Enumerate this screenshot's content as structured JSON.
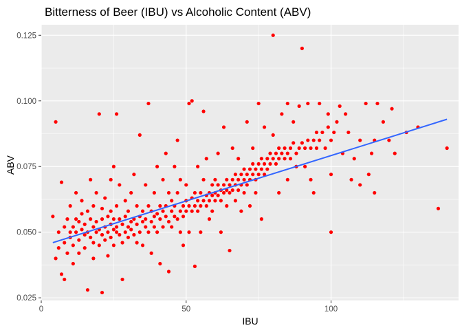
{
  "chart_data": {
    "type": "scatter",
    "title": "Bitterness of Beer (IBU) vs Alcoholic Content (ABV)",
    "xlabel": "IBU",
    "ylabel": "ABV",
    "xlim": [
      0,
      144
    ],
    "ylim": [
      0.024,
      0.129
    ],
    "x_ticks": [
      0,
      50,
      100
    ],
    "x_tick_labels": [
      "0",
      "50",
      "100"
    ],
    "y_ticks": [
      0.025,
      0.05,
      0.075,
      0.1,
      0.125
    ],
    "y_tick_labels": [
      "0.025",
      "0.050",
      "0.075",
      "0.100",
      "0.125"
    ],
    "grid": true,
    "panel_background": "#ebebeb",
    "point_color": "#ff0000",
    "trend_color": "#3366ff",
    "trend_line": {
      "type": "lm",
      "x": [
        4,
        140
      ],
      "y": [
        0.046,
        0.093
      ]
    },
    "series": [
      {
        "points": [
          [
            4,
            0.056
          ],
          [
            5,
            0.092
          ],
          [
            5,
            0.04
          ],
          [
            6,
            0.05
          ],
          [
            6,
            0.044
          ],
          [
            7,
            0.069
          ],
          [
            7,
            0.034
          ],
          [
            8,
            0.052
          ],
          [
            8,
            0.046
          ],
          [
            8,
            0.032
          ],
          [
            9,
            0.055
          ],
          [
            9,
            0.042
          ],
          [
            10,
            0.05
          ],
          [
            10,
            0.048
          ],
          [
            10,
            0.06
          ],
          [
            11,
            0.052
          ],
          [
            11,
            0.045
          ],
          [
            11,
            0.038
          ],
          [
            12,
            0.055
          ],
          [
            12,
            0.05
          ],
          [
            12,
            0.065
          ],
          [
            13,
            0.047
          ],
          [
            13,
            0.054
          ],
          [
            13,
            0.042
          ],
          [
            14,
            0.051
          ],
          [
            14,
            0.057
          ],
          [
            14,
            0.062
          ],
          [
            15,
            0.049
          ],
          [
            15,
            0.053
          ],
          [
            15,
            0.044
          ],
          [
            16,
            0.058
          ],
          [
            16,
            0.05
          ],
          [
            16,
            0.028
          ],
          [
            17,
            0.055
          ],
          [
            17,
            0.048
          ],
          [
            17,
            0.07
          ],
          [
            18,
            0.052
          ],
          [
            18,
            0.046
          ],
          [
            18,
            0.06
          ],
          [
            18,
            0.04
          ],
          [
            19,
            0.054
          ],
          [
            19,
            0.05
          ],
          [
            19,
            0.065
          ],
          [
            20,
            0.051
          ],
          [
            20,
            0.095
          ],
          [
            20,
            0.045
          ],
          [
            21,
            0.055
          ],
          [
            21,
            0.049
          ],
          [
            21,
            0.059
          ],
          [
            21,
            0.027
          ],
          [
            22,
            0.052
          ],
          [
            22,
            0.047
          ],
          [
            22,
            0.063
          ],
          [
            23,
            0.056
          ],
          [
            23,
            0.05
          ],
          [
            23,
            0.041
          ],
          [
            24,
            0.053
          ],
          [
            24,
            0.048
          ],
          [
            24,
            0.07
          ],
          [
            24,
            0.058
          ],
          [
            25,
            0.051
          ],
          [
            25,
            0.055
          ],
          [
            25,
            0.045
          ],
          [
            25,
            0.075
          ],
          [
            26,
            0.05
          ],
          [
            26,
            0.06
          ],
          [
            26,
            0.095
          ],
          [
            26,
            0.052
          ],
          [
            27,
            0.055
          ],
          [
            27,
            0.049
          ],
          [
            27,
            0.068
          ],
          [
            28,
            0.053
          ],
          [
            28,
            0.046
          ],
          [
            28,
            0.032
          ],
          [
            29,
            0.056
          ],
          [
            29,
            0.05
          ],
          [
            29,
            0.062
          ],
          [
            30,
            0.052
          ],
          [
            30,
            0.058
          ],
          [
            30,
            0.048
          ],
          [
            31,
            0.054
          ],
          [
            31,
            0.065
          ],
          [
            31,
            0.051
          ],
          [
            32,
            0.055
          ],
          [
            32,
            0.049
          ],
          [
            32,
            0.072
          ],
          [
            33,
            0.053
          ],
          [
            33,
            0.06
          ],
          [
            33,
            0.046
          ],
          [
            34,
            0.056
          ],
          [
            34,
            0.05
          ],
          [
            34,
            0.087
          ],
          [
            35,
            0.054
          ],
          [
            35,
            0.058
          ],
          [
            35,
            0.045
          ],
          [
            36,
            0.055
          ],
          [
            36,
            0.052
          ],
          [
            36,
            0.068
          ],
          [
            37,
            0.06
          ],
          [
            37,
            0.05
          ],
          [
            37,
            0.099
          ],
          [
            38,
            0.054
          ],
          [
            38,
            0.058
          ],
          [
            38,
            0.042
          ],
          [
            39,
            0.056
          ],
          [
            39,
            0.052
          ],
          [
            39,
            0.065
          ],
          [
            40,
            0.057
          ],
          [
            40,
            0.05
          ],
          [
            40,
            0.075
          ],
          [
            41,
            0.055
          ],
          [
            41,
            0.06
          ],
          [
            41,
            0.038
          ],
          [
            42,
            0.058
          ],
          [
            42,
            0.052
          ],
          [
            42,
            0.07
          ],
          [
            43,
            0.056
          ],
          [
            43,
            0.06
          ],
          [
            43,
            0.08
          ],
          [
            44,
            0.054
          ],
          [
            44,
            0.065
          ],
          [
            44,
            0.035
          ],
          [
            45,
            0.058
          ],
          [
            45,
            0.052
          ],
          [
            45,
            0.062
          ],
          [
            46,
            0.06
          ],
          [
            46,
            0.056
          ],
          [
            46,
            0.075
          ],
          [
            47,
            0.055
          ],
          [
            47,
            0.065
          ],
          [
            47,
            0.085
          ],
          [
            48,
            0.058
          ],
          [
            48,
            0.05
          ],
          [
            48,
            0.07
          ],
          [
            49,
            0.06
          ],
          [
            49,
            0.056
          ],
          [
            49,
            0.045
          ],
          [
            50,
            0.062
          ],
          [
            50,
            0.058
          ],
          [
            50,
            0.068
          ],
          [
            51,
            0.06
          ],
          [
            51,
            0.099
          ],
          [
            51,
            0.05
          ],
          [
            52,
            0.063
          ],
          [
            52,
            0.058
          ],
          [
            52,
            0.1
          ],
          [
            53,
            0.06
          ],
          [
            53,
            0.065
          ],
          [
            53,
            0.037
          ],
          [
            54,
            0.062
          ],
          [
            54,
            0.058
          ],
          [
            54,
            0.075
          ],
          [
            55,
            0.065
          ],
          [
            55,
            0.06
          ],
          [
            55,
            0.05
          ],
          [
            56,
            0.062
          ],
          [
            56,
            0.07
          ],
          [
            56,
            0.096
          ],
          [
            57,
            0.064
          ],
          [
            57,
            0.06
          ],
          [
            57,
            0.078
          ],
          [
            58,
            0.065
          ],
          [
            58,
            0.062
          ],
          [
            58,
            0.055
          ],
          [
            59,
            0.068
          ],
          [
            59,
            0.064
          ],
          [
            59,
            0.058
          ],
          [
            60,
            0.065
          ],
          [
            60,
            0.062
          ],
          [
            60,
            0.07
          ],
          [
            61,
            0.068
          ],
          [
            61,
            0.064
          ],
          [
            61,
            0.08
          ],
          [
            62,
            0.066
          ],
          [
            62,
            0.062
          ],
          [
            62,
            0.05
          ],
          [
            63,
            0.068
          ],
          [
            63,
            0.065
          ],
          [
            63,
            0.09
          ],
          [
            64,
            0.066
          ],
          [
            64,
            0.07
          ],
          [
            64,
            0.06
          ],
          [
            65,
            0.068
          ],
          [
            65,
            0.065
          ],
          [
            65,
            0.043
          ],
          [
            66,
            0.07
          ],
          [
            66,
            0.066
          ],
          [
            66,
            0.082
          ],
          [
            67,
            0.068
          ],
          [
            67,
            0.072
          ],
          [
            67,
            0.062
          ],
          [
            68,
            0.07
          ],
          [
            68,
            0.066
          ],
          [
            68,
            0.078
          ],
          [
            69,
            0.072
          ],
          [
            69,
            0.068
          ],
          [
            69,
            0.058
          ],
          [
            70,
            0.07
          ],
          [
            70,
            0.074
          ],
          [
            70,
            0.065
          ],
          [
            71,
            0.072
          ],
          [
            71,
            0.068
          ],
          [
            71,
            0.092
          ],
          [
            72,
            0.074
          ],
          [
            72,
            0.07
          ],
          [
            72,
            0.06
          ],
          [
            73,
            0.072
          ],
          [
            73,
            0.076
          ],
          [
            73,
            0.082
          ],
          [
            74,
            0.074
          ],
          [
            74,
            0.07
          ],
          [
            74,
            0.065
          ],
          [
            75,
            0.076
          ],
          [
            75,
            0.072
          ],
          [
            75,
            0.099
          ],
          [
            76,
            0.074
          ],
          [
            76,
            0.078
          ],
          [
            76,
            0.055
          ],
          [
            77,
            0.076
          ],
          [
            77,
            0.072
          ],
          [
            77,
            0.09
          ],
          [
            78,
            0.078
          ],
          [
            78,
            0.074
          ],
          [
            79,
            0.076
          ],
          [
            79,
            0.08
          ],
          [
            80,
            0.078
          ],
          [
            80,
            0.125
          ],
          [
            80,
            0.087
          ],
          [
            81,
            0.08
          ],
          [
            81,
            0.076
          ],
          [
            82,
            0.078
          ],
          [
            82,
            0.082
          ],
          [
            82,
            0.065
          ],
          [
            83,
            0.08
          ],
          [
            83,
            0.095
          ],
          [
            84,
            0.082
          ],
          [
            84,
            0.078
          ],
          [
            85,
            0.08
          ],
          [
            85,
            0.099
          ],
          [
            85,
            0.07
          ],
          [
            86,
            0.082
          ],
          [
            86,
            0.078
          ],
          [
            87,
            0.084
          ],
          [
            87,
            0.092
          ],
          [
            88,
            0.08
          ],
          [
            88,
            0.075
          ],
          [
            89,
            0.082
          ],
          [
            89,
            0.098
          ],
          [
            90,
            0.084
          ],
          [
            90,
            0.12
          ],
          [
            91,
            0.082
          ],
          [
            91,
            0.075
          ],
          [
            92,
            0.085
          ],
          [
            92,
            0.099
          ],
          [
            93,
            0.082
          ],
          [
            93,
            0.07
          ],
          [
            94,
            0.085
          ],
          [
            94,
            0.065
          ],
          [
            95,
            0.088
          ],
          [
            95,
            0.082
          ],
          [
            96,
            0.085
          ],
          [
            96,
            0.099
          ],
          [
            97,
            0.088
          ],
          [
            98,
            0.082
          ],
          [
            99,
            0.095
          ],
          [
            99,
            0.09
          ],
          [
            100,
            0.085
          ],
          [
            100,
            0.05
          ],
          [
            100,
            0.072
          ],
          [
            101,
            0.088
          ],
          [
            102,
            0.092
          ],
          [
            103,
            0.098
          ],
          [
            104,
            0.08
          ],
          [
            105,
            0.095
          ],
          [
            106,
            0.088
          ],
          [
            107,
            0.07
          ],
          [
            108,
            0.078
          ],
          [
            110,
            0.085
          ],
          [
            110,
            0.068
          ],
          [
            112,
            0.099
          ],
          [
            113,
            0.072
          ],
          [
            114,
            0.08
          ],
          [
            115,
            0.085
          ],
          [
            115,
            0.065
          ],
          [
            116,
            0.099
          ],
          [
            118,
            0.092
          ],
          [
            120,
            0.085
          ],
          [
            121,
            0.097
          ],
          [
            122,
            0.08
          ],
          [
            126,
            0.088
          ],
          [
            130,
            0.09
          ],
          [
            137,
            0.059
          ],
          [
            140,
            0.082
          ]
        ]
      }
    ]
  }
}
